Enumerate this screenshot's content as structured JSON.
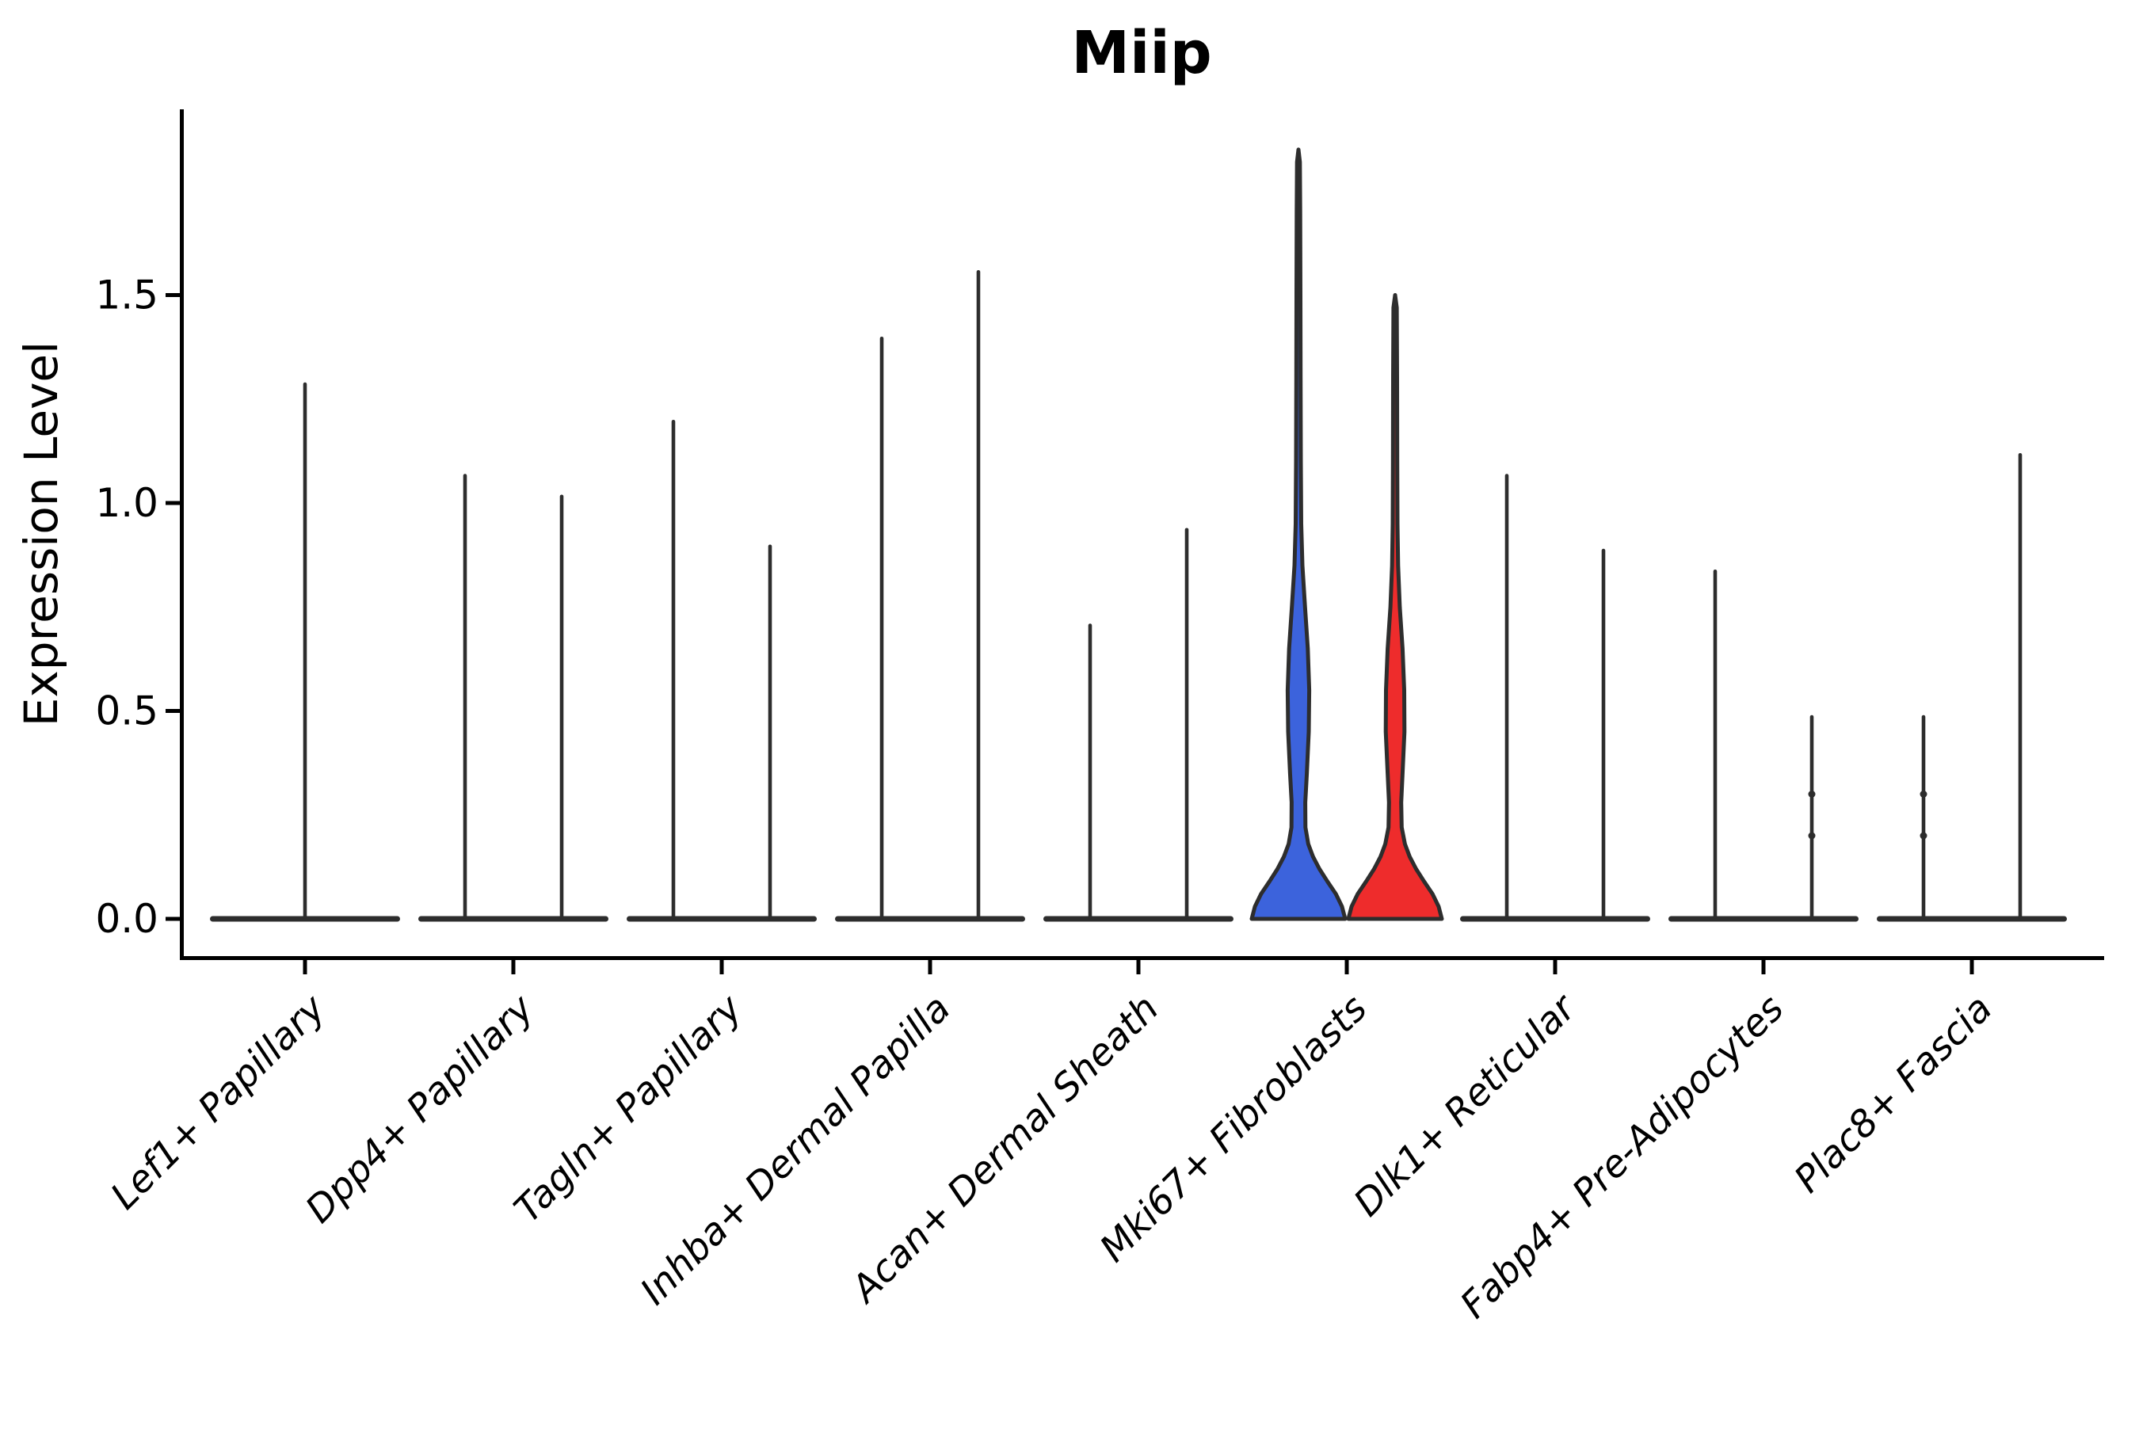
{
  "chart_data": {
    "type": "violin",
    "title": "Miip",
    "xlabel": "",
    "ylabel": "Expression Level",
    "ylim": [
      0,
      1.94
    ],
    "yticks": [
      0.0,
      0.5,
      1.0,
      1.5
    ],
    "ytick_labels": [
      "0.0",
      "0.5",
      "1.0",
      "1.5"
    ],
    "grid": false,
    "legend": "none",
    "description": "Split violin plot of Miip expression per fibroblast cluster; most violins collapse to a baseline with a thin spike to the maximum expression value. Only Mki67+ Fibroblasts shows filled blue (left) and red (right) violins.",
    "categories": [
      {
        "label": "Lef1+ Papillary",
        "violins": [
          {
            "side": "single",
            "shape": "spike",
            "max": 1.29
          }
        ]
      },
      {
        "label": "Dpp4+ Papillary",
        "violins": [
          {
            "side": "left",
            "shape": "spike",
            "max": 1.07
          },
          {
            "side": "right",
            "shape": "spike",
            "max": 1.02
          }
        ]
      },
      {
        "label": "Tagln+ Papillary",
        "violins": [
          {
            "side": "left",
            "shape": "spike",
            "max": 1.2
          },
          {
            "side": "right",
            "shape": "spike",
            "max": 0.9
          }
        ]
      },
      {
        "label": "Inhba+ Dermal Papilla",
        "violins": [
          {
            "side": "left",
            "shape": "spike",
            "max": 1.4
          },
          {
            "side": "right",
            "shape": "spike",
            "max": 1.56
          }
        ]
      },
      {
        "label": "Acan+ Dermal Sheath",
        "violins": [
          {
            "side": "left",
            "shape": "spike",
            "max": 0.71
          },
          {
            "side": "right",
            "shape": "spike",
            "max": 0.94
          }
        ]
      },
      {
        "label": "Mki67+ Fibroblasts",
        "violins": [
          {
            "side": "left",
            "shape": "violin",
            "fill": "blue",
            "max": 1.85,
            "profile": [
              [
                0,
                1.0
              ],
              [
                0.03,
                0.93
              ],
              [
                0.06,
                0.8
              ],
              [
                0.09,
                0.62
              ],
              [
                0.12,
                0.45
              ],
              [
                0.15,
                0.31
              ],
              [
                0.18,
                0.21
              ],
              [
                0.22,
                0.15
              ],
              [
                0.28,
                0.145
              ],
              [
                0.35,
                0.18
              ],
              [
                0.45,
                0.22
              ],
              [
                0.55,
                0.23
              ],
              [
                0.65,
                0.2
              ],
              [
                0.75,
                0.14
              ],
              [
                0.85,
                0.085
              ],
              [
                0.95,
                0.06
              ],
              [
                1.1,
                0.05
              ],
              [
                1.3,
                0.045
              ],
              [
                1.5,
                0.042
              ],
              [
                1.7,
                0.038
              ],
              [
                1.82,
                0.03
              ],
              [
                1.85,
                0.0
              ]
            ]
          },
          {
            "side": "right",
            "shape": "violin",
            "fill": "red",
            "max": 1.5,
            "profile": [
              [
                0,
                1.0
              ],
              [
                0.03,
                0.93
              ],
              [
                0.06,
                0.8
              ],
              [
                0.09,
                0.62
              ],
              [
                0.12,
                0.45
              ],
              [
                0.15,
                0.31
              ],
              [
                0.18,
                0.21
              ],
              [
                0.22,
                0.14
              ],
              [
                0.28,
                0.13
              ],
              [
                0.35,
                0.16
              ],
              [
                0.45,
                0.2
              ],
              [
                0.55,
                0.195
              ],
              [
                0.65,
                0.16
              ],
              [
                0.75,
                0.1
              ],
              [
                0.85,
                0.065
              ],
              [
                0.95,
                0.05
              ],
              [
                1.1,
                0.045
              ],
              [
                1.3,
                0.042
              ],
              [
                1.47,
                0.035
              ],
              [
                1.5,
                0.0
              ]
            ]
          }
        ]
      },
      {
        "label": "Dlk1+ Reticular",
        "violins": [
          {
            "side": "left",
            "shape": "spike",
            "max": 1.07
          },
          {
            "side": "right",
            "shape": "spike",
            "max": 0.89
          }
        ]
      },
      {
        "label": "Fabp4+ Pre-Adipocytes",
        "violins": [
          {
            "side": "left",
            "shape": "spike",
            "max": 0.84
          },
          {
            "side": "right",
            "shape": "spike",
            "max": 0.49,
            "knots": [
              0.3,
              0.2
            ]
          }
        ]
      },
      {
        "label": "Plac8+ Fascia",
        "violins": [
          {
            "side": "left",
            "shape": "spike",
            "max": 0.49,
            "knots": [
              0.3,
              0.2
            ]
          },
          {
            "side": "right",
            "shape": "spike",
            "max": 1.12
          }
        ]
      }
    ],
    "colors": {
      "violin_blue": "#3C63DC",
      "violin_red": "#EE2C2C",
      "outline": "#2D2D2D",
      "axis": "#000000"
    }
  }
}
